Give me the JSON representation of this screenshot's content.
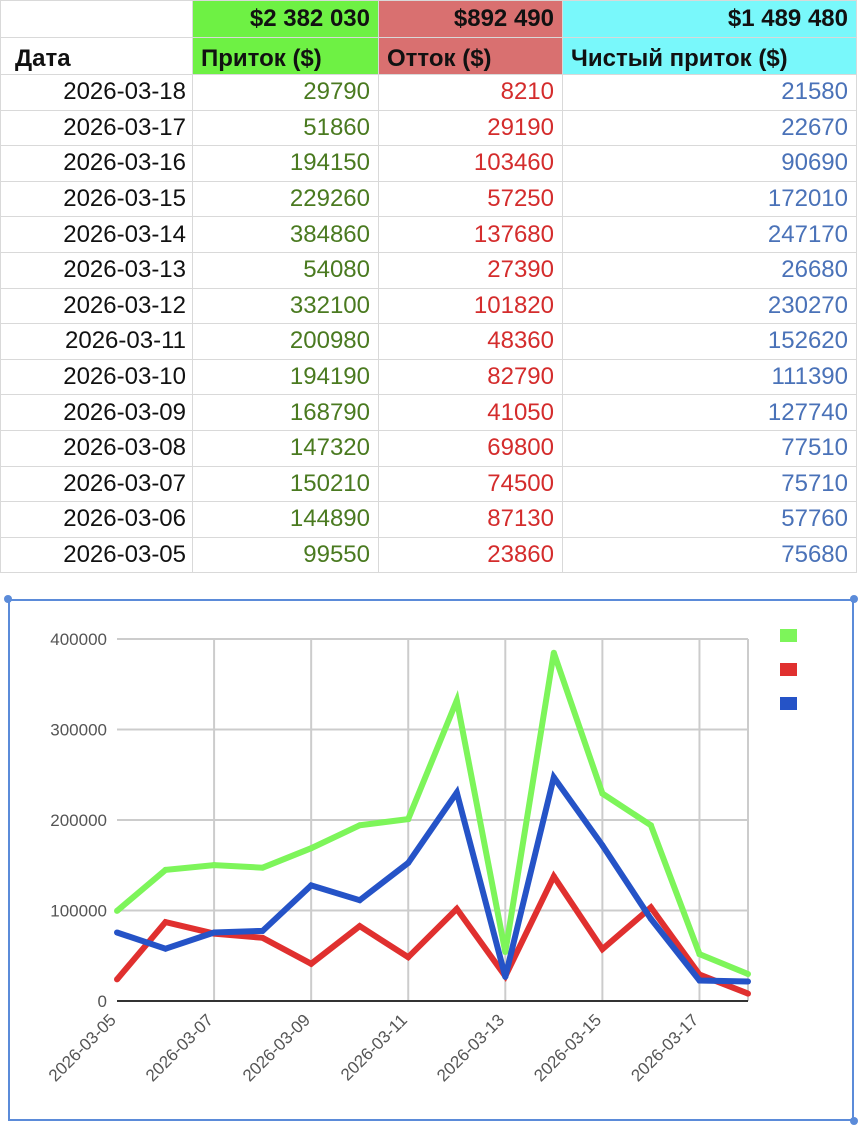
{
  "sheet": {
    "totals": {
      "inflow": "$2 382 030",
      "outflow": "$892 490",
      "net": "$1 489 480"
    },
    "headers": {
      "date": "Дата",
      "inflow": "Приток ($)",
      "outflow": "Отток ($)",
      "net": "Чистый приток ($)"
    },
    "rows": [
      {
        "date": "2026-03-18",
        "inflow": "29790",
        "outflow": "8210",
        "net": "21580"
      },
      {
        "date": "2026-03-17",
        "inflow": "51860",
        "outflow": "29190",
        "net": "22670"
      },
      {
        "date": "2026-03-16",
        "inflow": "194150",
        "outflow": "103460",
        "net": "90690"
      },
      {
        "date": "2026-03-15",
        "inflow": "229260",
        "outflow": "57250",
        "net": "172010"
      },
      {
        "date": "2026-03-14",
        "inflow": "384860",
        "outflow": "137680",
        "net": "247170"
      },
      {
        "date": "2026-03-13",
        "inflow": "54080",
        "outflow": "27390",
        "net": "26680"
      },
      {
        "date": "2026-03-12",
        "inflow": "332100",
        "outflow": "101820",
        "net": "230270"
      },
      {
        "date": "2026-03-11",
        "inflow": "200980",
        "outflow": "48360",
        "net": "152620"
      },
      {
        "date": "2026-03-10",
        "inflow": "194190",
        "outflow": "82790",
        "net": "111390"
      },
      {
        "date": "2026-03-09",
        "inflow": "168790",
        "outflow": "41050",
        "net": "127740"
      },
      {
        "date": "2026-03-08",
        "inflow": "147320",
        "outflow": "69800",
        "net": "77510"
      },
      {
        "date": "2026-03-07",
        "inflow": "150210",
        "outflow": "74500",
        "net": "75710"
      },
      {
        "date": "2026-03-06",
        "inflow": "144890",
        "outflow": "87130",
        "net": "57760"
      },
      {
        "date": "2026-03-05",
        "inflow": "99550",
        "outflow": "23860",
        "net": "75680"
      }
    ]
  },
  "colors": {
    "inflow_text": "#4a7a20",
    "outflow_text": "#d42c2c",
    "net_text": "#4a72b8",
    "inflow_header": "#6ef144",
    "outflow_header": "#d97070",
    "net_header": "#79f8fb",
    "chart_frame": "#5b8bd9"
  },
  "chart_data": {
    "type": "line",
    "x": [
      "2026-03-05",
      "2026-03-06",
      "2026-03-07",
      "2026-03-08",
      "2026-03-09",
      "2026-03-10",
      "2026-03-11",
      "2026-03-12",
      "2026-03-13",
      "2026-03-14",
      "2026-03-15",
      "2026-03-16",
      "2026-03-17",
      "2026-03-18"
    ],
    "x_tick_labels": [
      "2026-03-05",
      "2026-03-07",
      "2026-03-09",
      "2026-03-11",
      "2026-03-13",
      "2026-03-15",
      "2026-03-17"
    ],
    "series": [
      {
        "color": "#7df55a",
        "values": [
          99550,
          144890,
          150210,
          147320,
          168790,
          194190,
          200980,
          332100,
          54080,
          384860,
          229260,
          194150,
          51860,
          29790
        ]
      },
      {
        "color": "#e0302f",
        "values": [
          23860,
          87130,
          74500,
          69800,
          41050,
          82790,
          48360,
          101820,
          27390,
          137680,
          57250,
          103460,
          29190,
          8210
        ]
      },
      {
        "color": "#2553c7",
        "values": [
          75680,
          57760,
          75710,
          77510,
          127740,
          111390,
          152620,
          230270,
          26680,
          247170,
          172010,
          90690,
          22670,
          21580
        ]
      }
    ],
    "y_ticks": [
      "0",
      "100000",
      "200000",
      "300000",
      "400000"
    ],
    "ylim": [
      0,
      400000
    ],
    "title": "",
    "xlabel": "",
    "ylabel": "",
    "grid": true,
    "legend_position": "top-right"
  }
}
